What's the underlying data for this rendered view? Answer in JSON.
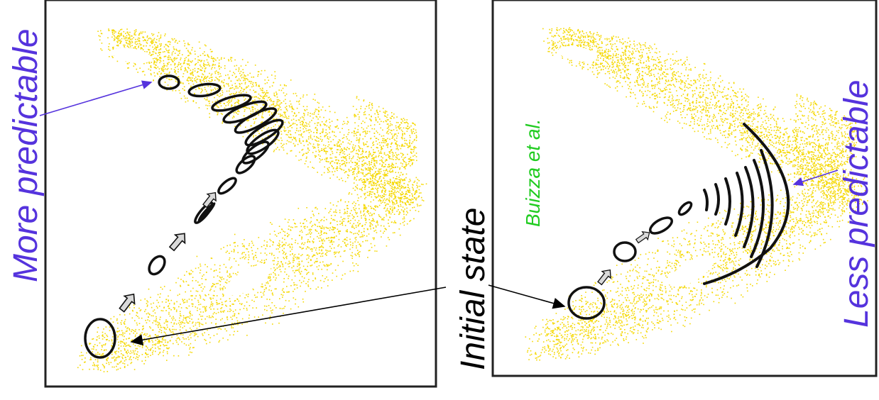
{
  "labels": {
    "left_panel": "More predictable",
    "right_panel": "Less predictable",
    "center": "Initial state",
    "credit": "Buizza et al."
  },
  "colors": {
    "attractor": "#f5d800",
    "ellipse": "#111111",
    "arrow_fill": "#d9d9d9",
    "predictable_label": "#5533dd",
    "credit_label": "#22cc22",
    "center_label": "#000000",
    "pointer_arrow": "#5533dd"
  }
}
